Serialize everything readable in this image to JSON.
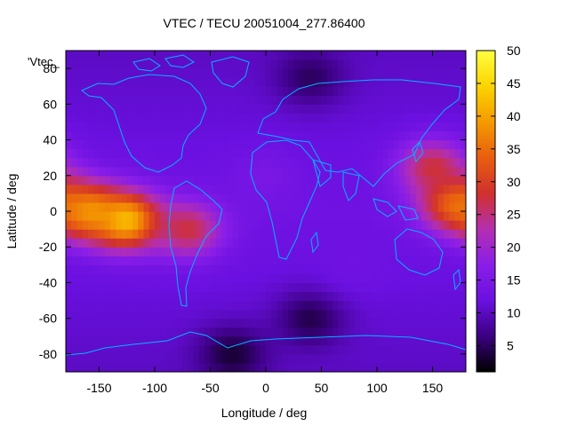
{
  "chart_data": {
    "type": "heatmap",
    "title": "VTEC / TECU 20051004_277.86400",
    "xlabel": "Longitude / deg",
    "ylabel": "Latitude / deg",
    "xlim": [
      -180,
      180
    ],
    "ylim": [
      -90,
      90
    ],
    "xticks": [
      -150,
      -100,
      -50,
      0,
      50,
      100,
      150
    ],
    "yticks": [
      -80,
      -60,
      -40,
      -20,
      0,
      20,
      40,
      60,
      80
    ],
    "colorbar": {
      "range": [
        1,
        50
      ],
      "ticks": [
        5,
        10,
        15,
        20,
        25,
        30,
        35,
        40,
        45,
        50
      ],
      "palette": [
        "#000000",
        "#3b0080",
        "#6a10e0",
        "#8a1ee8",
        "#b42fb0",
        "#d0302d",
        "#e85e10",
        "#f59a00",
        "#fbd400",
        "#ffff40"
      ]
    },
    "legend_label": "'Vtec_",
    "grid": false,
    "overlay": "coastlines",
    "overlay_color": "#00b4ff",
    "features": [
      {
        "lon": -125,
        "lat": -5,
        "vtec": 48
      },
      {
        "lon": -160,
        "lat": 0,
        "vtec": 42
      },
      {
        "lon": -70,
        "lat": -10,
        "vtec": 30
      },
      {
        "lon": 170,
        "lat": 5,
        "vtec": 38
      },
      {
        "lon": 150,
        "lat": 25,
        "vtec": 30
      },
      {
        "lon": 40,
        "lat": -60,
        "vtec": 3
      },
      {
        "lon": 40,
        "lat": 75,
        "vtec": 4
      },
      {
        "lon": -30,
        "lat": -80,
        "vtec": 2
      },
      {
        "lon": 0,
        "lat": 20,
        "vtec": 15
      },
      {
        "lon": 80,
        "lat": -30,
        "vtec": 13
      }
    ]
  }
}
